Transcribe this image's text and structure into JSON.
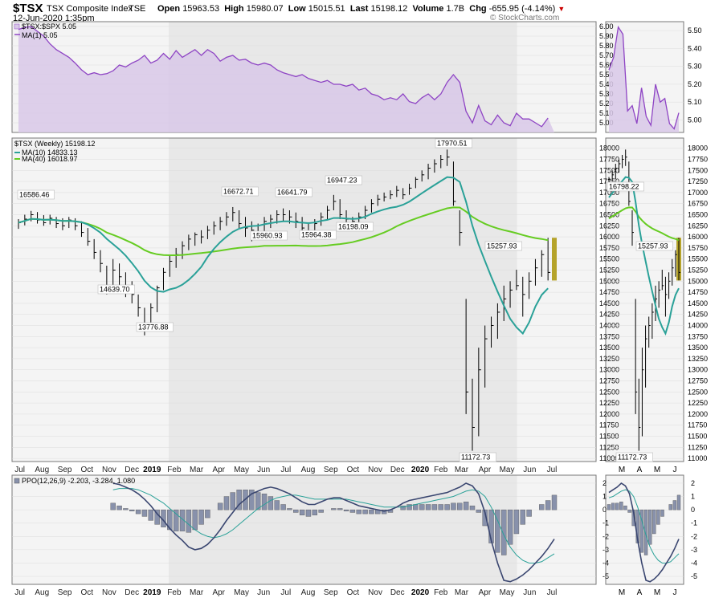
{
  "header": {
    "symbol": "$TSX",
    "name": "TSX Composite Index",
    "exchange": "TSE",
    "date": "12-Jun-2020 1:35pm",
    "open_label": "Open",
    "open": "15963.53",
    "high_label": "High",
    "high": "15980.07",
    "low_label": "Low",
    "low": "15015.51",
    "last_label": "Last",
    "last": "15198.12",
    "volume_label": "Volume",
    "volume": "1.7B",
    "chg_label": "Chg",
    "chg": "-655.95 (-4.14%)",
    "watermark": "© StockCharts.com"
  },
  "colors": {
    "ratio_fill": "#d8c8e8",
    "ratio_line": "#8e44c4",
    "ma10": "#2aa198",
    "ma40": "#66cc22",
    "price_bar": "#000000",
    "highlight": "#b5a32a",
    "ppo_line": "#3a4670",
    "ppo_signal": "#2aa198",
    "ppo_hist": "#8891ab",
    "shade": "#e8e8e8"
  },
  "chart_data": [
    {
      "type": "area",
      "panel": "ratio",
      "legend": [
        "$TSX:$SPX 5.05",
        "MA(1) 5.05"
      ],
      "ylim": [
        4.9,
        6.05
      ],
      "y_ticks": [
        "6.00",
        "5.90",
        "5.80",
        "5.70",
        "5.60",
        "5.50",
        "5.40",
        "5.30",
        "5.20",
        "5.10",
        "5.00"
      ],
      "values": [
        5.97,
        5.99,
        6.0,
        5.95,
        5.9,
        5.82,
        5.76,
        5.72,
        5.68,
        5.62,
        5.55,
        5.5,
        5.52,
        5.5,
        5.51,
        5.54,
        5.6,
        5.58,
        5.62,
        5.65,
        5.7,
        5.62,
        5.65,
        5.72,
        5.66,
        5.75,
        5.68,
        5.72,
        5.76,
        5.7,
        5.76,
        5.72,
        5.64,
        5.68,
        5.7,
        5.65,
        5.66,
        5.62,
        5.6,
        5.62,
        5.6,
        5.55,
        5.52,
        5.5,
        5.48,
        5.5,
        5.46,
        5.44,
        5.42,
        5.44,
        5.4,
        5.4,
        5.38,
        5.4,
        5.34,
        5.36,
        5.3,
        5.28,
        5.24,
        5.26,
        5.24,
        5.3,
        5.22,
        5.2,
        5.26,
        5.3,
        5.24,
        5.3,
        5.42,
        5.5,
        5.42,
        5.12,
        5.0,
        5.18,
        5.02,
        4.98,
        5.08,
        5.0,
        4.97,
        5.1,
        5.04,
        5.04,
        5.0,
        4.96,
        5.05
      ]
    },
    {
      "type": "area",
      "panel": "ratio-zoom",
      "y_ticks": [
        "5.50",
        "5.40",
        "5.30",
        "5.20",
        "5.10",
        "5.00"
      ],
      "ylim": [
        4.93,
        5.55
      ],
      "values": [
        5.28,
        5.35,
        5.52,
        5.48,
        5.05,
        5.08,
        4.98,
        5.18,
        5.02,
        4.97,
        5.2,
        5.1,
        5.12,
        4.98,
        4.95,
        5.04
      ]
    },
    {
      "type": "line",
      "panel": "price",
      "title": "$TSX (Weekly) 15198.12",
      "series": [
        {
          "name": "MA(10) 14833.13"
        },
        {
          "name": "MA(40) 16018.97"
        }
      ],
      "ylim": [
        10930,
        18230
      ],
      "y_ticks": [
        "18000",
        "17750",
        "17500",
        "17250",
        "17000",
        "16750",
        "16500",
        "16250",
        "16000",
        "15750",
        "15500",
        "15250",
        "15000",
        "14750",
        "14500",
        "14250",
        "14000",
        "13750",
        "13500",
        "13250",
        "13000",
        "12750",
        "12500",
        "12250",
        "12000",
        "11750",
        "11500",
        "11250",
        "11000"
      ],
      "x_ticks": [
        "Jul",
        "Aug",
        "Sep",
        "Oct",
        "Nov",
        "Dec",
        "2019",
        "Feb",
        "Mar",
        "Apr",
        "May",
        "Jun",
        "Jul",
        "Aug",
        "Sep",
        "Oct",
        "Nov",
        "Dec",
        "2020",
        "Feb",
        "Mar",
        "Apr",
        "May",
        "Jun",
        "Jul"
      ],
      "annotations": [
        "16586.46",
        "14639.70",
        "13776.88",
        "16672.71",
        "15960.93",
        "16641.79",
        "15964.38",
        "16947.23",
        "16198.09",
        "17970.51",
        "15257.93",
        "11172.73"
      ],
      "weekly_hlc": [
        [
          16400,
          16180,
          16320
        ],
        [
          16500,
          16260,
          16400
        ],
        [
          16586,
          16350,
          16500
        ],
        [
          16560,
          16300,
          16380
        ],
        [
          16490,
          16250,
          16320
        ],
        [
          16500,
          16280,
          16420
        ],
        [
          16450,
          16200,
          16300
        ],
        [
          16420,
          16150,
          16250
        ],
        [
          16450,
          16200,
          16380
        ],
        [
          16420,
          16150,
          16250
        ],
        [
          16350,
          16000,
          16100
        ],
        [
          16200,
          15800,
          15900
        ],
        [
          15950,
          15500,
          15650
        ],
        [
          15700,
          15200,
          15400
        ],
        [
          15350,
          14700,
          14900
        ],
        [
          15500,
          14900,
          15250
        ],
        [
          15400,
          14900,
          15100
        ],
        [
          15200,
          14640,
          14850
        ],
        [
          15000,
          14500,
          14700
        ],
        [
          14700,
          14200,
          14400
        ],
        [
          14400,
          13777,
          13950
        ],
        [
          14500,
          13900,
          14400
        ],
        [
          14900,
          14300,
          14850
        ],
        [
          15300,
          14800,
          15200
        ],
        [
          15600,
          15100,
          15450
        ],
        [
          15750,
          15300,
          15600
        ],
        [
          15900,
          15500,
          15800
        ],
        [
          16050,
          15700,
          15950
        ],
        [
          16100,
          15800,
          16050
        ],
        [
          16150,
          15850,
          16000
        ],
        [
          16250,
          15950,
          16150
        ],
        [
          16350,
          16050,
          16250
        ],
        [
          16450,
          16150,
          16350
        ],
        [
          16560,
          16250,
          16450
        ],
        [
          16673,
          16350,
          16550
        ],
        [
          16600,
          16200,
          16300
        ],
        [
          16450,
          16000,
          16200
        ],
        [
          16350,
          15900,
          16150
        ],
        [
          16300,
          15961,
          16100
        ],
        [
          16450,
          16050,
          16350
        ],
        [
          16500,
          16200,
          16400
        ],
        [
          16600,
          16300,
          16500
        ],
        [
          16642,
          16350,
          16500
        ],
        [
          16600,
          16300,
          16450
        ],
        [
          16550,
          16200,
          16350
        ],
        [
          16450,
          16000,
          16200
        ],
        [
          16300,
          15964,
          16100
        ],
        [
          16400,
          16050,
          16300
        ],
        [
          16550,
          16250,
          16450
        ],
        [
          16700,
          16400,
          16600
        ],
        [
          16947,
          16600,
          16800
        ],
        [
          16850,
          16400,
          16500
        ],
        [
          16600,
          16250,
          16400
        ],
        [
          16450,
          16198,
          16350
        ],
        [
          16550,
          16250,
          16450
        ],
        [
          16700,
          16400,
          16600
        ],
        [
          16850,
          16550,
          16750
        ],
        [
          16950,
          16700,
          16850
        ],
        [
          17000,
          16800,
          16900
        ],
        [
          17050,
          16850,
          16950
        ],
        [
          17150,
          16900,
          17050
        ],
        [
          17100,
          16850,
          16950
        ],
        [
          17200,
          16950,
          17100
        ],
        [
          17350,
          17100,
          17300
        ],
        [
          17500,
          17250,
          17400
        ],
        [
          17650,
          17300,
          17550
        ],
        [
          17750,
          17450,
          17650
        ],
        [
          17850,
          17550,
          17750
        ],
        [
          17971,
          17600,
          17800
        ],
        [
          17700,
          16700,
          16800
        ],
        [
          16600,
          15800,
          16100
        ],
        [
          14600,
          12000,
          12500
        ],
        [
          12800,
          11173,
          11700
        ],
        [
          13500,
          11500,
          13000
        ],
        [
          14000,
          12600,
          13700
        ],
        [
          14200,
          13500,
          14000
        ],
        [
          14500,
          13700,
          14300
        ],
        [
          14900,
          14100,
          14600
        ],
        [
          15000,
          14400,
          14800
        ],
        [
          15258,
          14800,
          14900
        ],
        [
          15100,
          14200,
          14700
        ],
        [
          15200,
          14600,
          15000
        ],
        [
          15500,
          14900,
          15300
        ],
        [
          15700,
          15100,
          15600
        ],
        [
          15980,
          15016,
          15198
        ]
      ]
    },
    {
      "type": "line",
      "panel": "price-zoom",
      "annotations": [
        "16798.22",
        "15257.93",
        "11172.73"
      ],
      "x_ticks": [
        "M",
        "A",
        "M",
        "J"
      ]
    },
    {
      "type": "bar",
      "panel": "ppo",
      "title": "PPO(12,26,9) -2.203, -3.284, 1.080",
      "ylim": [
        -5.6,
        2.6
      ],
      "y_ticks": [
        "2",
        "1",
        "0",
        "-1",
        "-2",
        "-3",
        "-4",
        "-5"
      ],
      "ppo": [
        2.0,
        1.9,
        1.7,
        1.5,
        1.2,
        0.8,
        0.3,
        -0.3,
        -0.8,
        -1.4,
        -1.9,
        -2.3,
        -2.8,
        -3.0,
        -2.9,
        -2.6,
        -2.1,
        -1.5,
        -0.8,
        -0.2,
        0.4,
        0.8,
        1.2,
        1.4,
        1.6,
        1.7,
        1.6,
        1.4,
        1.2,
        0.9,
        0.6,
        0.4,
        0.4,
        0.6,
        0.8,
        0.9,
        0.9,
        0.7,
        0.5,
        0.3,
        0.2,
        0.1,
        0.0,
        -0.1,
        0.0,
        0.2,
        0.5,
        0.7,
        0.8,
        0.9,
        1.0,
        1.1,
        1.2,
        1.3,
        1.5,
        1.7,
        2.0,
        1.8,
        1.2,
        -0.2,
        -2.3,
        -4.0,
        -5.3,
        -5.4,
        -5.2,
        -4.9,
        -4.5,
        -4.0,
        -3.5,
        -2.9,
        -2.2
      ],
      "signal": [
        1.5,
        1.6,
        1.6,
        1.6,
        1.5,
        1.3,
        1.1,
        0.8,
        0.5,
        0.1,
        -0.3,
        -0.7,
        -1.1,
        -1.5,
        -1.8,
        -2.0,
        -2.1,
        -2.0,
        -1.8,
        -1.5,
        -1.1,
        -0.7,
        -0.3,
        0.1,
        0.4,
        0.7,
        0.9,
        1.0,
        1.1,
        1.1,
        1.0,
        0.9,
        0.8,
        0.8,
        0.8,
        0.8,
        0.8,
        0.8,
        0.7,
        0.6,
        0.5,
        0.4,
        0.3,
        0.2,
        0.2,
        0.2,
        0.2,
        0.3,
        0.4,
        0.5,
        0.6,
        0.7,
        0.8,
        0.9,
        1.0,
        1.2,
        1.4,
        1.5,
        1.4,
        1.0,
        0.2,
        -0.8,
        -1.9,
        -2.8,
        -3.4,
        -3.8,
        -4.0,
        -4.0,
        -3.9,
        -3.6,
        -3.3
      ],
      "histogram": [
        0.5,
        0.3,
        0.1,
        -0.1,
        -0.3,
        -0.5,
        -0.8,
        -1.1,
        -1.3,
        -1.5,
        -1.6,
        -1.6,
        -1.7,
        -1.5,
        -1.1,
        -0.6,
        0.0,
        0.5,
        1.0,
        1.3,
        1.5,
        1.5,
        1.5,
        1.3,
        1.2,
        1.0,
        0.7,
        0.4,
        0.1,
        -0.2,
        -0.4,
        -0.5,
        -0.4,
        -0.2,
        0.0,
        0.1,
        0.1,
        -0.1,
        -0.2,
        -0.3,
        -0.3,
        -0.3,
        -0.3,
        -0.3,
        -0.2,
        0.0,
        0.3,
        0.4,
        0.4,
        0.4,
        0.4,
        0.4,
        0.4,
        0.4,
        0.5,
        0.5,
        0.6,
        0.3,
        -0.2,
        -1.2,
        -2.5,
        -3.2,
        -3.4,
        -2.6,
        -1.8,
        -1.1,
        -0.5,
        0.0,
        0.4,
        0.7,
        1.1
      ]
    }
  ]
}
